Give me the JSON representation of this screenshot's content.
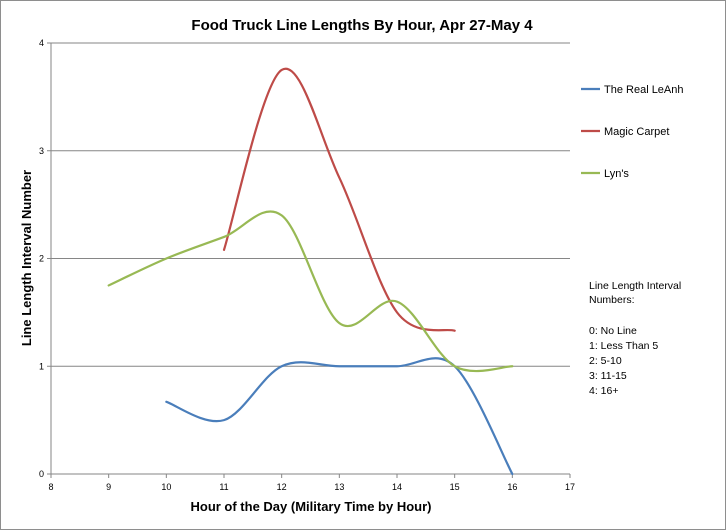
{
  "chart_data": {
    "type": "line",
    "title": "Food Truck Line Lengths By Hour, Apr 27-May 4",
    "xlabel": "Hour of the Day (Military Time by Hour)",
    "ylabel": "Line Length Interval Number",
    "xlim": [
      8,
      17
    ],
    "ylim": [
      0,
      4
    ],
    "x_ticks": [
      "8",
      "9",
      "10",
      "11",
      "12",
      "13",
      "14",
      "15",
      "16",
      "17"
    ],
    "y_ticks": [
      "0",
      "1",
      "2",
      "3",
      "4"
    ],
    "grid": "horizontal",
    "legend_position": "right",
    "series": [
      {
        "name": "The Real LeAnh",
        "color": "#4a7ebb",
        "points": [
          [
            10,
            0.67
          ],
          [
            11,
            0.5
          ],
          [
            12,
            1.0
          ],
          [
            13,
            1.0
          ],
          [
            14,
            1.0
          ],
          [
            15,
            1.0
          ],
          [
            16,
            0.0
          ]
        ]
      },
      {
        "name": "Magic Carpet",
        "color": "#be4b48",
        "points": [
          [
            11,
            2.08
          ],
          [
            12,
            3.75
          ],
          [
            13,
            2.75
          ],
          [
            14,
            1.5
          ],
          [
            15,
            1.33
          ]
        ]
      },
      {
        "name": "Lyn's",
        "color": "#98b954",
        "points": [
          [
            9,
            1.75
          ],
          [
            10,
            2.0
          ],
          [
            11,
            2.2
          ],
          [
            12,
            2.4
          ],
          [
            13,
            1.4
          ],
          [
            14,
            1.6
          ],
          [
            15,
            1.0
          ],
          [
            16,
            1.0
          ]
        ]
      }
    ],
    "annotation": {
      "title_lines": [
        "Line Length Interval",
        "Numbers:"
      ],
      "items": [
        "0:  No Line",
        "1:  Less Than 5",
        "2:  5-10",
        "3:  11-15",
        "4:  16+"
      ]
    }
  }
}
